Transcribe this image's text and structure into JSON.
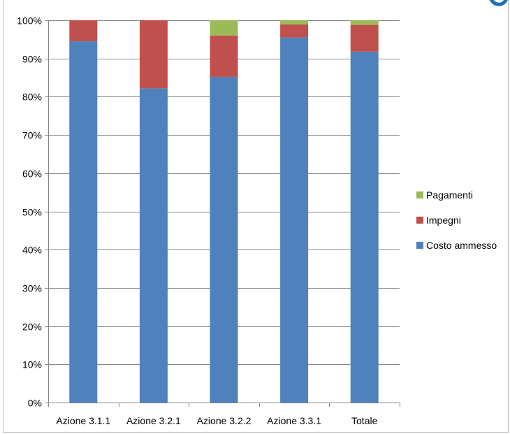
{
  "chart_data": {
    "type": "bar",
    "stacked": true,
    "categories": [
      "Azione 3.1.1",
      "Azione 3.2.1",
      "Azione 3.2.2",
      "Azione 3.3.1",
      "Totale"
    ],
    "series": [
      {
        "name": "Costo ammesso",
        "color": "#4f81bd",
        "values": [
          94.5,
          82.2,
          85.2,
          95.5,
          91.8
        ]
      },
      {
        "name": "Impegni",
        "color": "#c0504d",
        "values": [
          5.5,
          17.8,
          10.8,
          3.4,
          7.0
        ]
      },
      {
        "name": "Pagamenti",
        "color": "#9bbb59",
        "values": [
          0.0,
          0.0,
          4.0,
          1.1,
          1.2
        ]
      }
    ],
    "legend_order": [
      "Pagamenti",
      "Impegni",
      "Costo ammesso"
    ],
    "legend_position": "right",
    "ylim": [
      0,
      100
    ],
    "yticks": [
      "0%",
      "10%",
      "20%",
      "30%",
      "40%",
      "50%",
      "60%",
      "70%",
      "80%",
      "90%",
      "100%"
    ],
    "grid": true,
    "title": "",
    "xlabel": "",
    "ylabel": ""
  }
}
